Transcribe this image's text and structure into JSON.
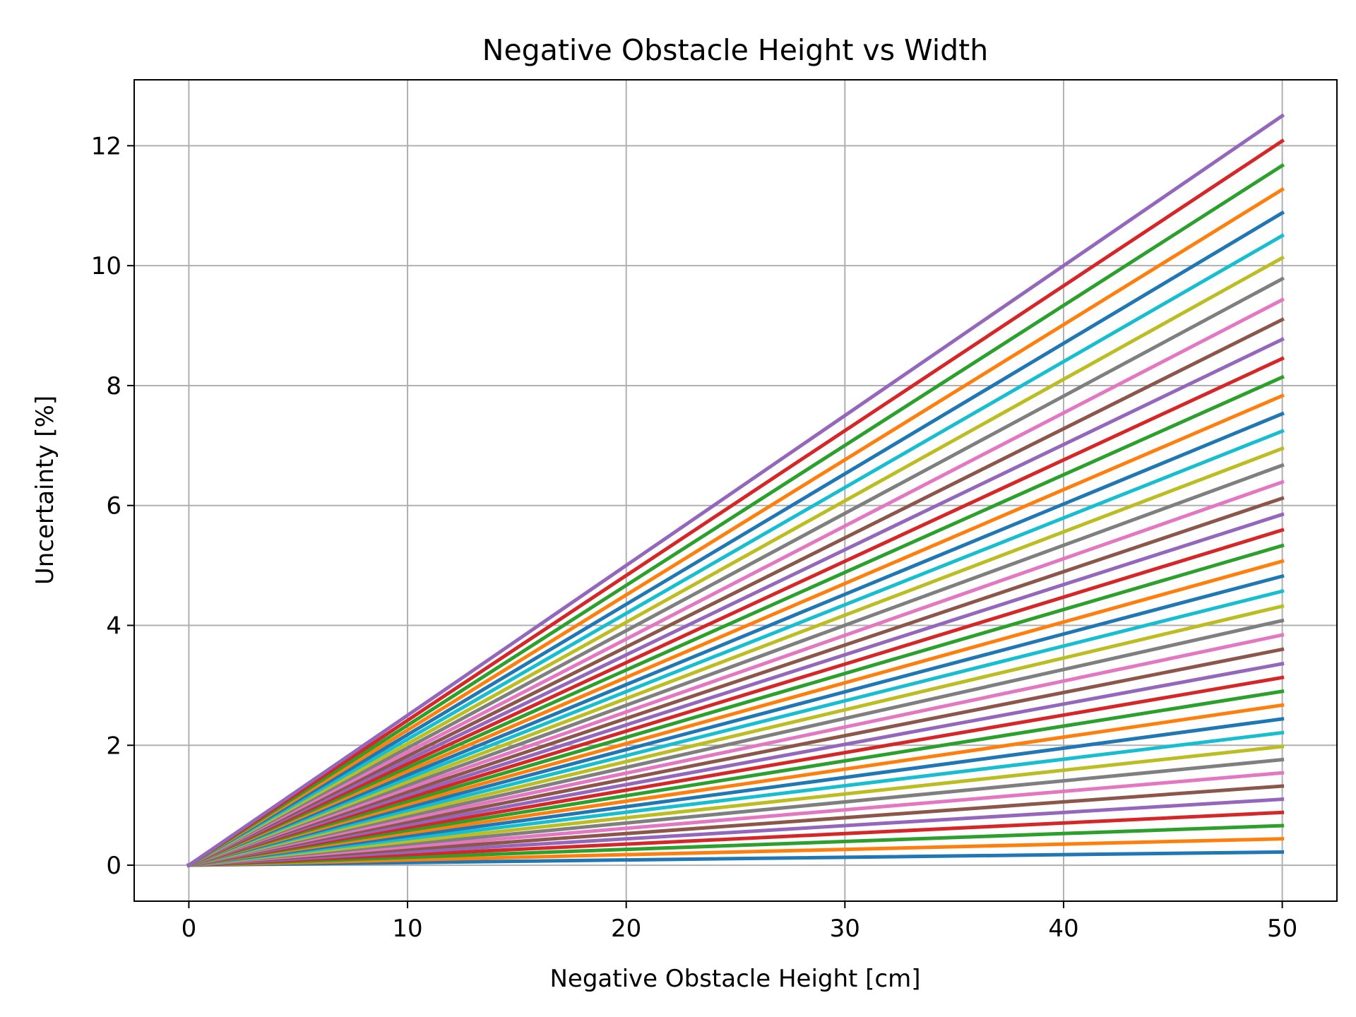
{
  "chart_data": {
    "type": "line",
    "title": "Negative Obstacle Height vs Width",
    "xlabel": "Negative Obstacle Height [cm]",
    "ylabel": "Uncertainty [%]",
    "xlim": [
      -2.5,
      52.5
    ],
    "ylim": [
      -0.6,
      13.1
    ],
    "xticks": [
      0,
      10,
      20,
      30,
      40,
      50
    ],
    "yticks": [
      0,
      2,
      4,
      6,
      8,
      10,
      12
    ],
    "grid": true,
    "legend": "none",
    "palette": [
      "#1f77b4",
      "#ff7f0e",
      "#2ca02c",
      "#d62728",
      "#9467bd",
      "#8c564b",
      "#e377c2",
      "#7f7f7f",
      "#bcbd22",
      "#17becf"
    ],
    "x": [
      0,
      50
    ],
    "series": [
      {
        "values": [
          0,
          0.22
        ]
      },
      {
        "values": [
          0,
          0.44
        ]
      },
      {
        "values": [
          0,
          0.66
        ]
      },
      {
        "values": [
          0,
          0.88
        ]
      },
      {
        "values": [
          0,
          1.1
        ]
      },
      {
        "values": [
          0,
          1.32
        ]
      },
      {
        "values": [
          0,
          1.54
        ]
      },
      {
        "values": [
          0,
          1.76
        ]
      },
      {
        "values": [
          0,
          1.98
        ]
      },
      {
        "values": [
          0,
          2.21
        ]
      },
      {
        "values": [
          0,
          2.44
        ]
      },
      {
        "values": [
          0,
          2.67
        ]
      },
      {
        "values": [
          0,
          2.9
        ]
      },
      {
        "values": [
          0,
          3.13
        ]
      },
      {
        "values": [
          0,
          3.36
        ]
      },
      {
        "values": [
          0,
          3.6
        ]
      },
      {
        "values": [
          0,
          3.84
        ]
      },
      {
        "values": [
          0,
          4.08
        ]
      },
      {
        "values": [
          0,
          4.32
        ]
      },
      {
        "values": [
          0,
          4.57
        ]
      },
      {
        "values": [
          0,
          4.82
        ]
      },
      {
        "values": [
          0,
          5.07
        ]
      },
      {
        "values": [
          0,
          5.33
        ]
      },
      {
        "values": [
          0,
          5.59
        ]
      },
      {
        "values": [
          0,
          5.85
        ]
      },
      {
        "values": [
          0,
          6.12
        ]
      },
      {
        "values": [
          0,
          6.39
        ]
      },
      {
        "values": [
          0,
          6.67
        ]
      },
      {
        "values": [
          0,
          6.95
        ]
      },
      {
        "values": [
          0,
          7.24
        ]
      },
      {
        "values": [
          0,
          7.53
        ]
      },
      {
        "values": [
          0,
          7.83
        ]
      },
      {
        "values": [
          0,
          8.14
        ]
      },
      {
        "values": [
          0,
          8.45
        ]
      },
      {
        "values": [
          0,
          8.77
        ]
      },
      {
        "values": [
          0,
          9.1
        ]
      },
      {
        "values": [
          0,
          9.43
        ]
      },
      {
        "values": [
          0,
          9.78
        ]
      },
      {
        "values": [
          0,
          10.13
        ]
      },
      {
        "values": [
          0,
          10.5
        ]
      },
      {
        "values": [
          0,
          10.88
        ]
      },
      {
        "values": [
          0,
          11.27
        ]
      },
      {
        "values": [
          0,
          11.67
        ]
      },
      {
        "values": [
          0,
          12.08
        ]
      },
      {
        "values": [
          0,
          12.5
        ]
      }
    ]
  }
}
